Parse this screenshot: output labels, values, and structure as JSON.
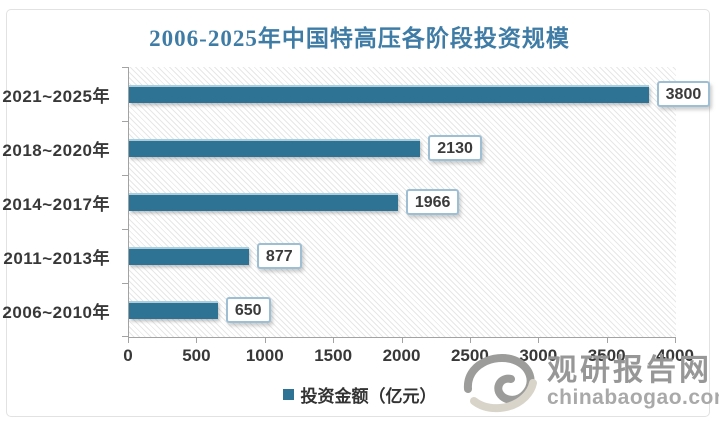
{
  "title": "2006-2025年中国特高压各阶段投资规模",
  "chart_data": {
    "type": "bar",
    "orientation": "horizontal",
    "title": "2006-2025年中国特高压各阶段投资规模",
    "categories": [
      "2021~2025年",
      "2018~2020年",
      "2014~2017年",
      "2011~2013年",
      "2006~2010年"
    ],
    "series": [
      {
        "name": "投资金额（亿元）",
        "values": [
          3800,
          2130,
          1966,
          877,
          650
        ]
      }
    ],
    "data_labels": [
      "3800",
      "2130",
      "1966",
      "877",
      "650"
    ],
    "xlim": [
      0,
      4000
    ],
    "x_ticks": [
      0,
      500,
      1000,
      1500,
      2000,
      2500,
      3000,
      3500,
      4000
    ],
    "grid": false,
    "legend_position": "bottom",
    "plot_background": "diagonal-hatch"
  },
  "legend": {
    "label": "投资金额（亿元）",
    "marker_color": "#2e7394"
  },
  "watermark": {
    "name": "观研报告网",
    "domain": "chinabaogao.com",
    "logo": "swirl-logo"
  },
  "colors": {
    "title": "#3e7ca6",
    "bar": "#2e7394",
    "bar_highlight": "#a9cfdf",
    "label_box_border": "#9ebfd3",
    "axis": "#a3a3a3",
    "tick_text": "#383838",
    "watermark_text": "#979797"
  }
}
